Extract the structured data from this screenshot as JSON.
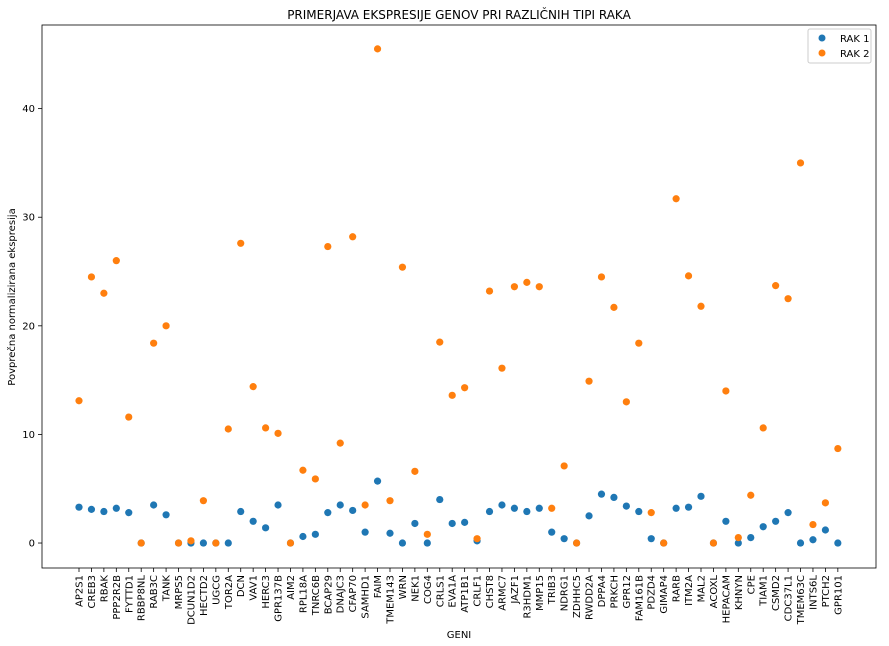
{
  "chart_data": {
    "type": "scatter",
    "title": "PRIMERJAVA EKSPRESIJE GENOV PRI RAZLIČNIH TIPI RAKA",
    "xlabel": "GENI",
    "ylabel": "Povprečna normalizirana ekspresija",
    "ylim": [
      -2.3,
      47.7
    ],
    "yticks": [
      0,
      10,
      20,
      30,
      40
    ],
    "grid": false,
    "legend_position": "top-right",
    "categories": [
      "AP2S1",
      "CREB3",
      "RBAK",
      "PPP2R2B",
      "FYTTD1",
      "RBBP8NL",
      "RAB3C",
      "TANK",
      "MRPS5",
      "DCUN1D2",
      "HECTD2",
      "UGCG",
      "TOR2A",
      "DCN",
      "VAV1",
      "HERC3",
      "GPR137B",
      "AIM2",
      "RPL18A",
      "TNRC6B",
      "BCAP29",
      "DNAJC3",
      "CFAP70",
      "SAMHD1",
      "FAIM",
      "TMEM143",
      "WRN",
      "NEK1",
      "COG4",
      "CRLS1",
      "EVA1A",
      "ATP1B1",
      "CRLF1",
      "CHST8",
      "ARMC7",
      "JAZF1",
      "R3HDM1",
      "MMP15",
      "TRIB3",
      "NDRG1",
      "ZDHHC5",
      "RWDD2A",
      "DPPA4",
      "PRKCH",
      "GPR12",
      "FAM161B",
      "PDZD4",
      "GIMAP4",
      "RARB",
      "ITM2A",
      "MAL2",
      "ACOXL",
      "HEPACAM",
      "KHNYN",
      "CPE",
      "TIAM1",
      "CSMD2",
      "CDC37L1",
      "TMEM63C",
      "INTS6L",
      "PTCH2",
      "GPR101"
    ],
    "series": [
      {
        "name": "RAK 1",
        "color": "#1f77b4",
        "values": [
          3.3,
          3.1,
          2.9,
          3.2,
          2.8,
          0.0,
          3.5,
          2.6,
          0.0,
          0.0,
          0.0,
          0.0,
          0.0,
          2.9,
          2.0,
          1.4,
          3.5,
          0.0,
          0.6,
          0.8,
          2.8,
          3.5,
          3.0,
          1.0,
          5.7,
          0.9,
          0.0,
          1.8,
          0.0,
          4.0,
          1.8,
          1.9,
          0.2,
          2.9,
          3.5,
          3.2,
          2.9,
          3.2,
          1.0,
          0.4,
          0.0,
          2.5,
          4.5,
          4.2,
          3.4,
          2.9,
          0.4,
          0.0,
          3.2,
          3.3,
          4.3,
          0.0,
          2.0,
          0.0,
          0.5,
          1.5,
          2.0,
          2.8,
          0.0,
          0.3,
          1.2,
          0.0
        ]
      },
      {
        "name": "RAK 2",
        "color": "#ff7f0e",
        "values": [
          13.1,
          24.5,
          23.0,
          26.0,
          11.6,
          0.0,
          18.4,
          20.0,
          0.0,
          0.2,
          3.9,
          0.0,
          10.5,
          27.6,
          14.4,
          10.6,
          10.1,
          0.0,
          6.7,
          5.9,
          27.3,
          9.2,
          28.2,
          3.5,
          45.5,
          3.9,
          25.4,
          6.6,
          0.8,
          18.5,
          13.6,
          14.3,
          0.4,
          23.2,
          16.1,
          23.6,
          24.0,
          23.6,
          3.2,
          7.1,
          0.0,
          14.9,
          24.5,
          21.7,
          13.0,
          18.4,
          2.8,
          0.0,
          31.7,
          24.6,
          21.8,
          0.0,
          14.0,
          0.5,
          4.4,
          10.6,
          23.7,
          22.5,
          35.0,
          1.7,
          3.7,
          8.7
        ]
      }
    ]
  }
}
